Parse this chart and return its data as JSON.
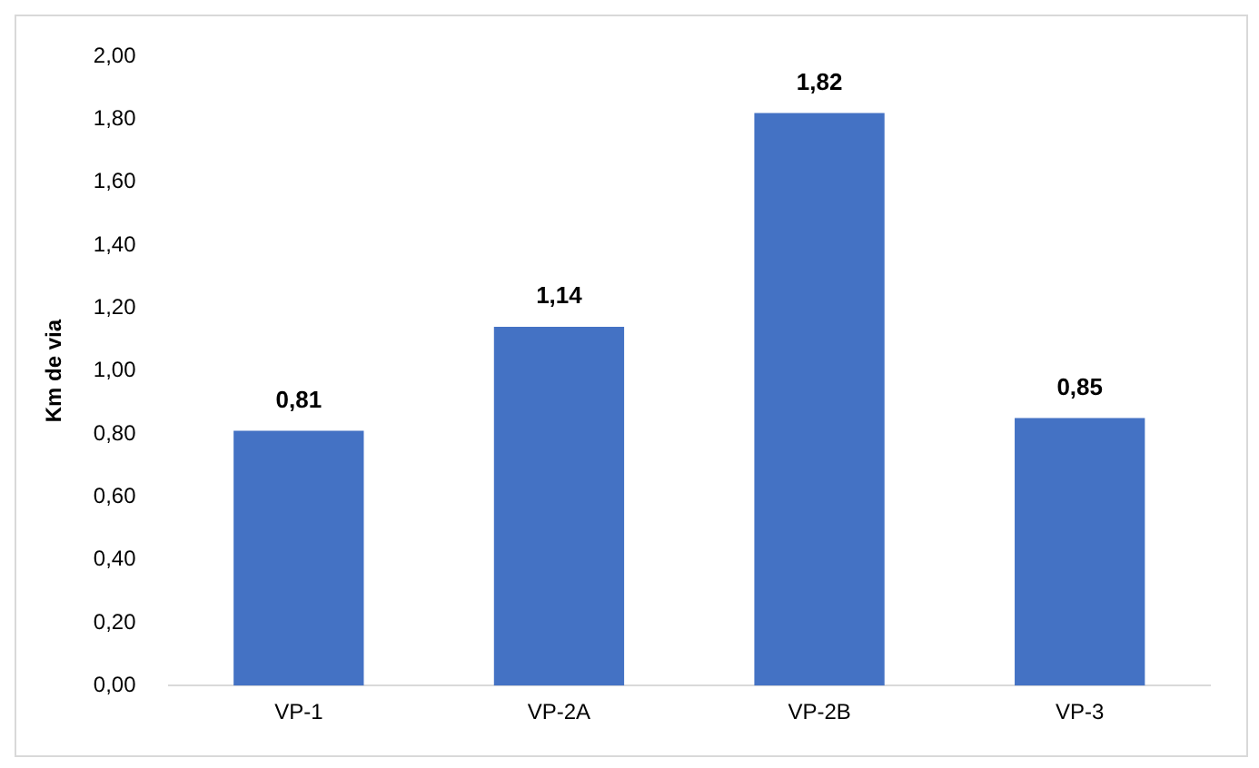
{
  "chart_data": {
    "type": "bar",
    "ylabel": "Km de via",
    "categories": [
      "VP-1",
      "VP-2A",
      "VP-2B",
      "VP-3"
    ],
    "values": [
      0.81,
      1.14,
      1.82,
      0.85
    ],
    "value_labels": [
      "0,81",
      "1,14",
      "1,82",
      "0,85"
    ],
    "color": "#4472c4",
    "ylim": [
      0,
      2
    ],
    "yticks": [
      {
        "value": 0,
        "label": "0,00"
      },
      {
        "value": 0.2,
        "label": "0,20"
      },
      {
        "value": 0.4,
        "label": "0,40"
      },
      {
        "value": 0.6,
        "label": "0,60"
      },
      {
        "value": 0.8,
        "label": "0,80"
      },
      {
        "value": 1,
        "label": "1,00"
      },
      {
        "value": 1.2,
        "label": "1,20"
      },
      {
        "value": 1.4,
        "label": "1,40"
      },
      {
        "value": 1.6,
        "label": "1,60"
      },
      {
        "value": 1.8,
        "label": "1,80"
      },
      {
        "value": 2,
        "label": "2,00"
      }
    ],
    "grid": false,
    "legend": false
  }
}
